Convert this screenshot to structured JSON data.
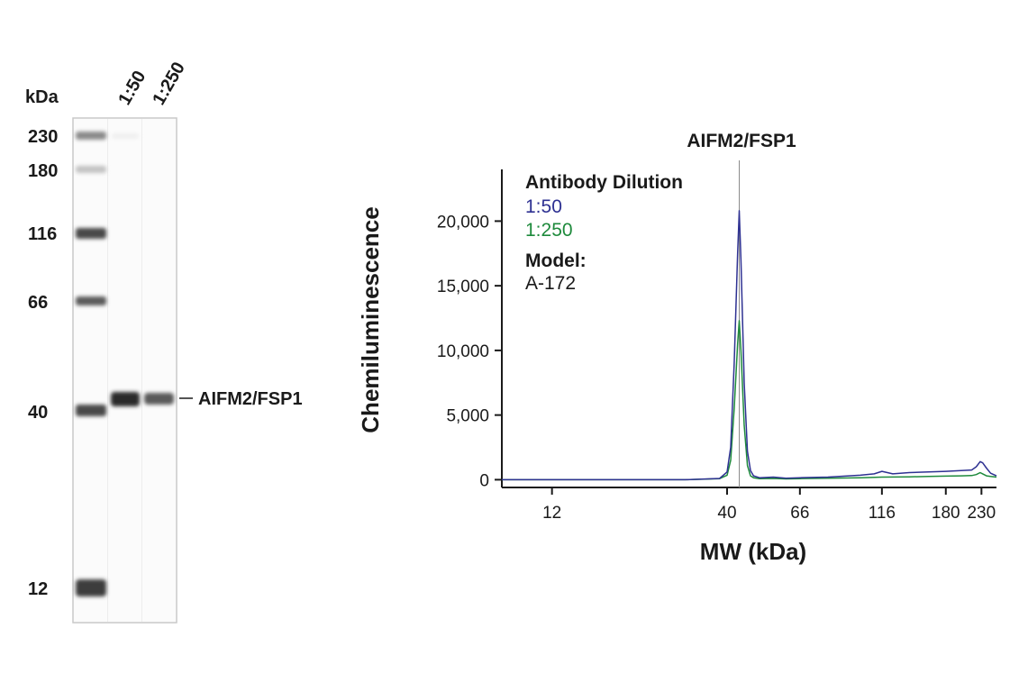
{
  "colors": {
    "series_150": "#2e3192",
    "series_1250": "#1e8a3c",
    "peak_line": "#888888",
    "text": "#1a1a1a"
  },
  "blot": {
    "unit_label": "kDa",
    "lane_labels": [
      "1:50",
      "1:250"
    ],
    "marker_labels": [
      "230",
      "180",
      "116",
      "66",
      "40",
      "12"
    ],
    "target_label": "AIFM2/FSP1"
  },
  "chart_data": {
    "type": "line",
    "title": "AIFM2/FSP1",
    "xlabel": "MW (kDa)",
    "ylabel": "Chemiluminescence",
    "x_scale": "log",
    "xlim": [
      8.5,
      255
    ],
    "ylim": [
      -600,
      24000
    ],
    "x_ticks": [
      12,
      40,
      66,
      116,
      180,
      230
    ],
    "x_tick_labels": [
      "12",
      "40",
      "66",
      "116",
      "180",
      "230"
    ],
    "y_ticks": [
      0,
      5000,
      10000,
      15000,
      20000
    ],
    "y_tick_labels": [
      "0",
      "5,000",
      "10,000",
      "15,000",
      "20,000"
    ],
    "peak_marker_x": 43.5,
    "legend": {
      "title": "Antibody Dilution",
      "model_label": "Model:",
      "model_value": "A-172",
      "placement": "top-left"
    },
    "series": [
      {
        "name": "1:50",
        "x": [
          8.5,
          12,
          20,
          30,
          38,
          40,
          41,
          42,
          43,
          43.5,
          44,
          45,
          46,
          47,
          48,
          50,
          55,
          60,
          66,
          80,
          100,
          110,
          116,
          125,
          140,
          160,
          180,
          200,
          215,
          222,
          228,
          232,
          238,
          245,
          255
        ],
        "y": [
          0,
          0,
          0,
          0,
          100,
          600,
          2500,
          9000,
          17500,
          20800,
          17000,
          7500,
          2200,
          700,
          300,
          150,
          200,
          120,
          150,
          200,
          350,
          450,
          650,
          450,
          550,
          600,
          650,
          700,
          750,
          1000,
          1400,
          1300,
          900,
          500,
          300
        ]
      },
      {
        "name": "1:250",
        "x": [
          8.5,
          12,
          20,
          30,
          38,
          40,
          41,
          42,
          43,
          43.5,
          44,
          45,
          46,
          47,
          48,
          50,
          55,
          60,
          66,
          80,
          100,
          116,
          140,
          160,
          180,
          200,
          215,
          222,
          228,
          232,
          238,
          245,
          255
        ],
        "y": [
          0,
          0,
          0,
          0,
          80,
          350,
          1500,
          5500,
          10500,
          12300,
          10000,
          4200,
          1100,
          300,
          150,
          80,
          100,
          60,
          80,
          120,
          150,
          200,
          220,
          250,
          280,
          300,
          320,
          400,
          550,
          450,
          300,
          250,
          200
        ]
      }
    ]
  }
}
